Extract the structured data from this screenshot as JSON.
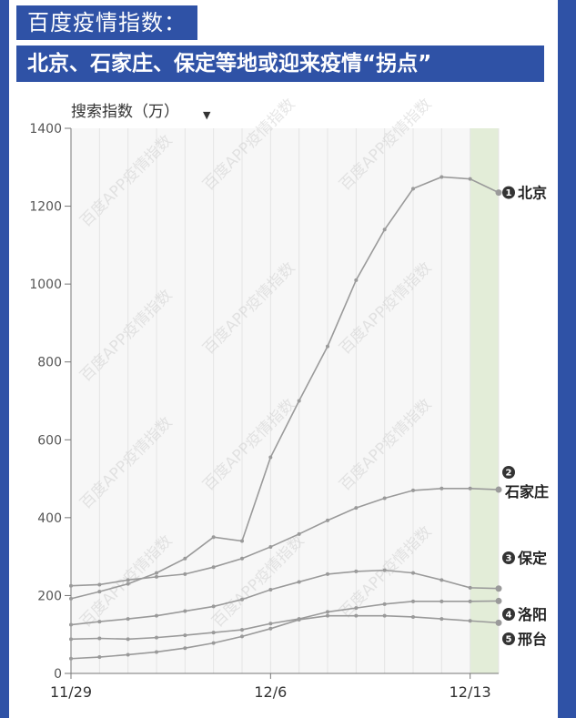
{
  "header": {
    "tag": "百度疫情指数：",
    "headline": "北京、石家庄、保定等地或迎来疫情“拐点”"
  },
  "watermark": "百度APP疫情指数",
  "colors": {
    "background": "#2f52a6",
    "title_bg": "#2f52a6",
    "plot_bg": "#f7f7f7",
    "highlight": "#e3edd8",
    "line": "#9a9a9a",
    "badge": "#333333"
  },
  "chart_data": {
    "type": "line",
    "ylabel": "搜索指数（万）",
    "ylim": [
      0,
      1400
    ],
    "yticks": [
      0,
      200,
      400,
      600,
      800,
      1000,
      1200,
      1400
    ],
    "x": [
      "11/29",
      "11/30",
      "12/1",
      "12/2",
      "12/3",
      "12/4",
      "12/5",
      "12/6",
      "12/7",
      "12/8",
      "12/9",
      "12/10",
      "12/11",
      "12/12",
      "12/13",
      "12/14"
    ],
    "xtick_labels": [
      {
        "label": "11/29",
        "index": 0
      },
      {
        "label": "12/6",
        "index": 7
      },
      {
        "label": "12/13",
        "index": 14
      }
    ],
    "highlight_range": [
      14,
      15
    ],
    "grid": "vertical",
    "series": [
      {
        "name": "北京",
        "rank": "1",
        "values": [
          192,
          210,
          230,
          258,
          295,
          350,
          340,
          555,
          700,
          840,
          1010,
          1140,
          1245,
          1275,
          1270,
          1235
        ]
      },
      {
        "name": "石家庄",
        "rank": "2",
        "values": [
          125,
          133,
          140,
          148,
          160,
          172,
          190,
          215,
          235,
          255,
          262,
          265,
          258,
          240,
          220,
          218
        ]
      },
      {
        "name": "保定",
        "rank": "3",
        "values": [
          225,
          228,
          240,
          248,
          255,
          273,
          295,
          325,
          358,
          393,
          425,
          450,
          470,
          475,
          475,
          472
        ]
      },
      {
        "name": "洛阳",
        "rank": "4",
        "values": [
          88,
          90,
          88,
          92,
          98,
          105,
          112,
          128,
          140,
          158,
          168,
          178,
          185,
          185,
          185,
          186
        ]
      },
      {
        "name": "邢台",
        "rank": "5",
        "values": [
          38,
          42,
          48,
          55,
          65,
          78,
          95,
          115,
          138,
          148,
          148,
          148,
          145,
          140,
          135,
          130
        ]
      }
    ]
  }
}
